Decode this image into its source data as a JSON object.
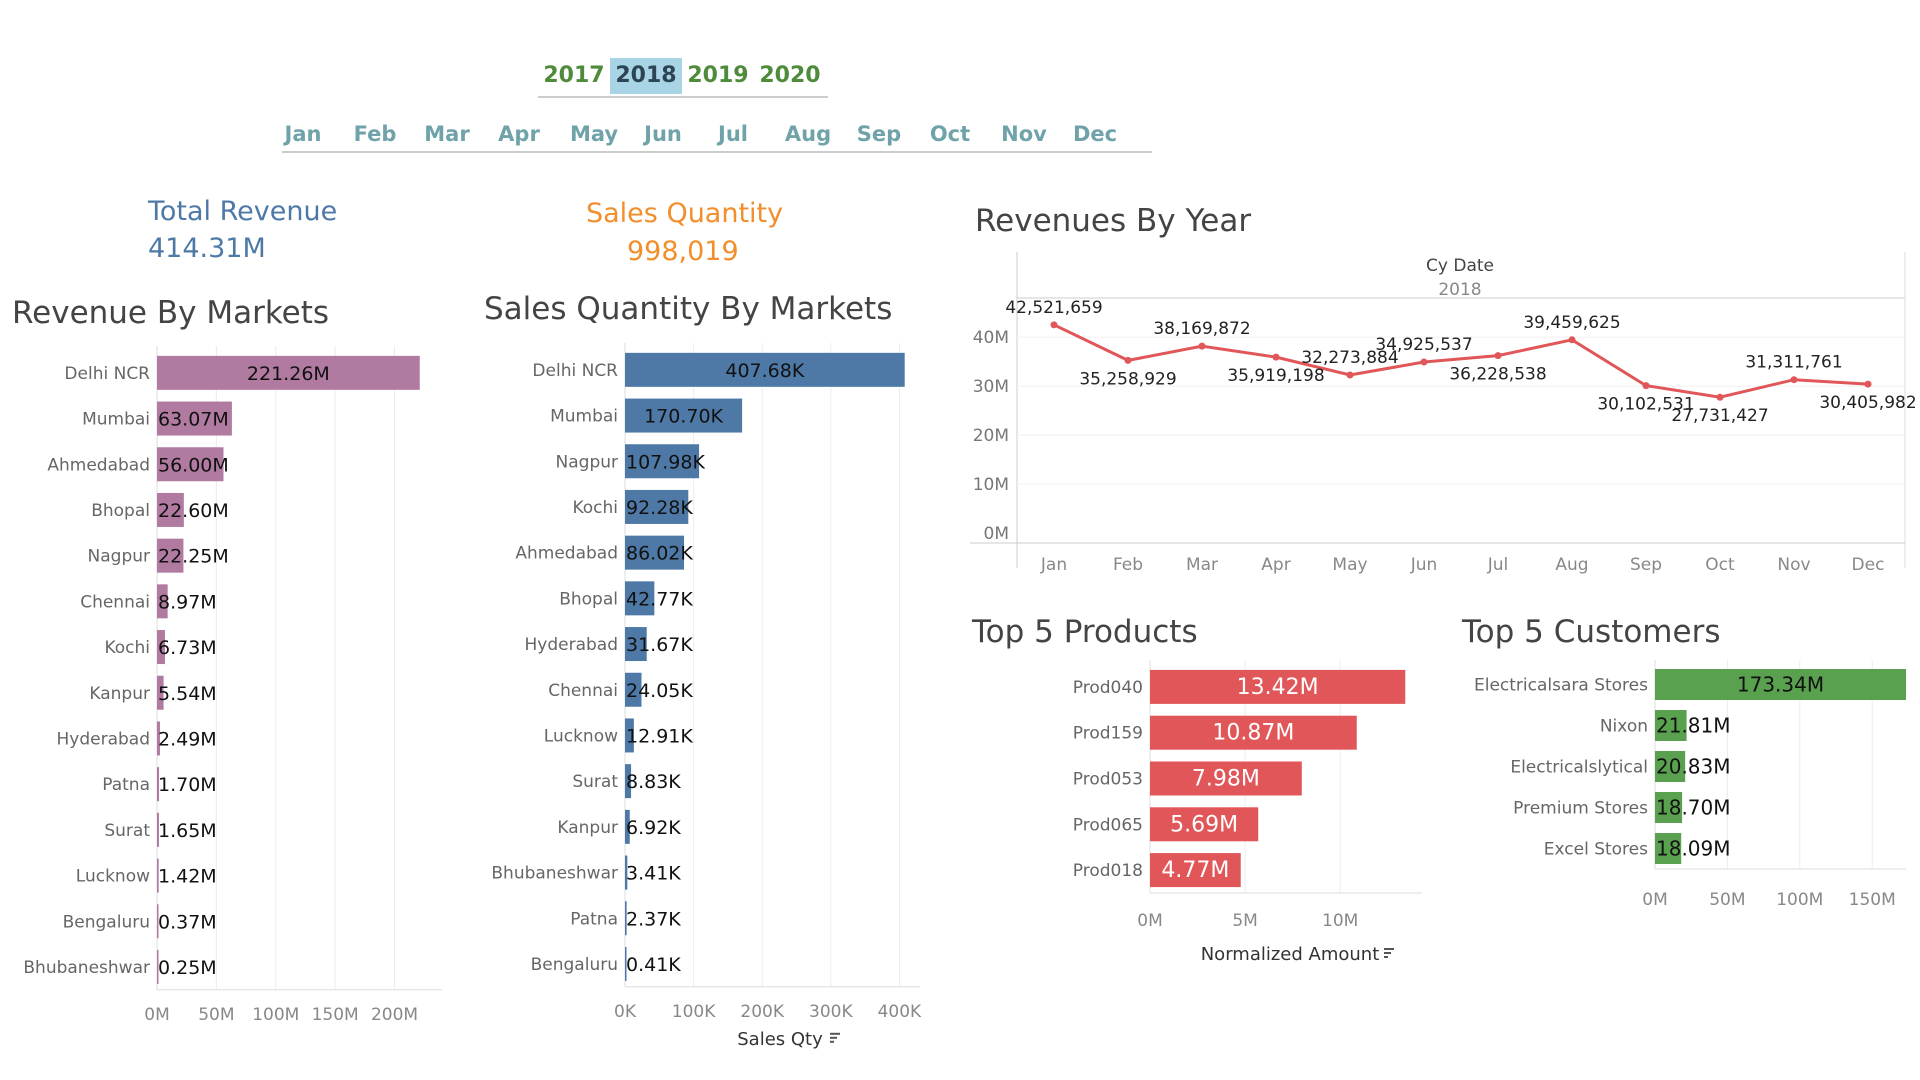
{
  "filters": {
    "years": [
      "2017",
      "2018",
      "2019",
      "2020"
    ],
    "selected_year": "2018",
    "months": [
      "Jan",
      "Feb",
      "Mar",
      "Apr",
      "May",
      "Jun",
      "Jul",
      "Aug",
      "Sep",
      "Oct",
      "Nov",
      "Dec"
    ]
  },
  "kpis": {
    "revenue": {
      "label": "Total Revenue",
      "value": "414.31M",
      "color": "#4e79a7"
    },
    "quantity": {
      "label": "Sales Quantity",
      "value": "998,019",
      "color": "#f28e2b"
    }
  },
  "chart_data": [
    {
      "id": "revenue_by_markets",
      "type": "bar",
      "orientation": "horizontal",
      "title": "Revenue By Markets",
      "categories": [
        "Delhi NCR",
        "Mumbai",
        "Ahmedabad",
        "Bhopal",
        "Nagpur",
        "Chennai",
        "Kochi",
        "Kanpur",
        "Hyderabad",
        "Patna",
        "Surat",
        "Lucknow",
        "Bengaluru",
        "Bhubaneshwar"
      ],
      "values": [
        221.26,
        63.07,
        56.0,
        22.6,
        22.25,
        8.97,
        6.73,
        5.54,
        2.49,
        1.7,
        1.65,
        1.42,
        0.37,
        0.25
      ],
      "labels": [
        "221.26M",
        "63.07M",
        "56.00M",
        "22.60M",
        "22.25M",
        "8.97M",
        "6.73M",
        "5.54M",
        "2.49M",
        "1.70M",
        "1.65M",
        "1.42M",
        "0.37M",
        "0.25M"
      ],
      "xticks": [
        "0M",
        "50M",
        "100M",
        "150M",
        "200M"
      ],
      "xtick_values": [
        0,
        50,
        100,
        150,
        200
      ],
      "xlim": [
        0,
        240
      ],
      "color": "#b07aa1"
    },
    {
      "id": "sales_qty_by_markets",
      "type": "bar",
      "orientation": "horizontal",
      "title": "Sales Quantity By Markets",
      "xlabel": "Sales Qty",
      "categories": [
        "Delhi NCR",
        "Mumbai",
        "Nagpur",
        "Kochi",
        "Ahmedabad",
        "Bhopal",
        "Hyderabad",
        "Chennai",
        "Lucknow",
        "Surat",
        "Kanpur",
        "Bhubaneshwar",
        "Patna",
        "Bengaluru"
      ],
      "values": [
        407.68,
        170.7,
        107.98,
        92.28,
        86.02,
        42.77,
        31.67,
        24.05,
        12.91,
        8.83,
        6.92,
        3.41,
        2.37,
        0.41
      ],
      "labels": [
        "407.68K",
        "170.70K",
        "107.98K",
        "92.28K",
        "86.02K",
        "42.77K",
        "31.67K",
        "24.05K",
        "12.91K",
        "8.83K",
        "6.92K",
        "3.41K",
        "2.37K",
        "0.41K"
      ],
      "xticks": [
        "0K",
        "100K",
        "200K",
        "300K",
        "400K"
      ],
      "xtick_values": [
        0,
        100,
        200,
        300,
        400
      ],
      "xlim": [
        0,
        430
      ],
      "color": "#4e79a7"
    },
    {
      "id": "revenues_by_year",
      "type": "line",
      "title": "Revenues By Year",
      "header": "Cy Date",
      "subheader": "2018",
      "categories": [
        "Jan",
        "Feb",
        "Mar",
        "Apr",
        "May",
        "Jun",
        "Jul",
        "Aug",
        "Sep",
        "Oct",
        "Nov",
        "Dec"
      ],
      "values": [
        42521659,
        35258929,
        38169872,
        35919198,
        32273884,
        34925537,
        36228538,
        39459625,
        30102531,
        27731427,
        31311761,
        30405982
      ],
      "labels": [
        "42,521,659",
        "35,258,929",
        "38,169,872",
        "35,919,198",
        "32,273,884",
        "34,925,537",
        "36,228,538",
        "39,459,625",
        "30,102,531",
        "27,731,427",
        "31,311,761",
        "30,405,982"
      ],
      "yticks": [
        "0M",
        "10M",
        "20M",
        "30M",
        "40M"
      ],
      "ytick_values": [
        0,
        10000000,
        20000000,
        30000000,
        40000000
      ],
      "ylim": [
        0,
        48000000
      ],
      "color": "#e15759"
    },
    {
      "id": "top5_products",
      "type": "bar",
      "orientation": "horizontal",
      "title": "Top 5 Products",
      "xlabel": "Normalized Amount",
      "categories": [
        "Prod040",
        "Prod159",
        "Prod053",
        "Prod065",
        "Prod018"
      ],
      "values": [
        13.42,
        10.87,
        7.98,
        5.69,
        4.77
      ],
      "labels": [
        "13.42M",
        "10.87M",
        "7.98M",
        "5.69M",
        "4.77M"
      ],
      "xticks": [
        "0M",
        "5M",
        "10M"
      ],
      "xtick_values": [
        0,
        5,
        10
      ],
      "xlim": [
        0,
        14.3
      ],
      "color": "#e15759"
    },
    {
      "id": "top5_customers",
      "type": "bar",
      "orientation": "horizontal",
      "title": "Top 5 Customers",
      "categories": [
        "Electricalsara Stores",
        "Nixon",
        "Electricalslytical",
        "Premium Stores",
        "Excel Stores"
      ],
      "values": [
        173.34,
        21.81,
        20.83,
        18.7,
        18.09
      ],
      "labels": [
        "173.34M",
        "21.81M",
        "20.83M",
        "18.70M",
        "18.09M"
      ],
      "xticks": [
        "0M",
        "50M",
        "100M",
        "150M"
      ],
      "xtick_values": [
        0,
        50,
        100,
        150
      ],
      "xlim": [
        0,
        173.34
      ],
      "color": "#59a14f"
    }
  ]
}
